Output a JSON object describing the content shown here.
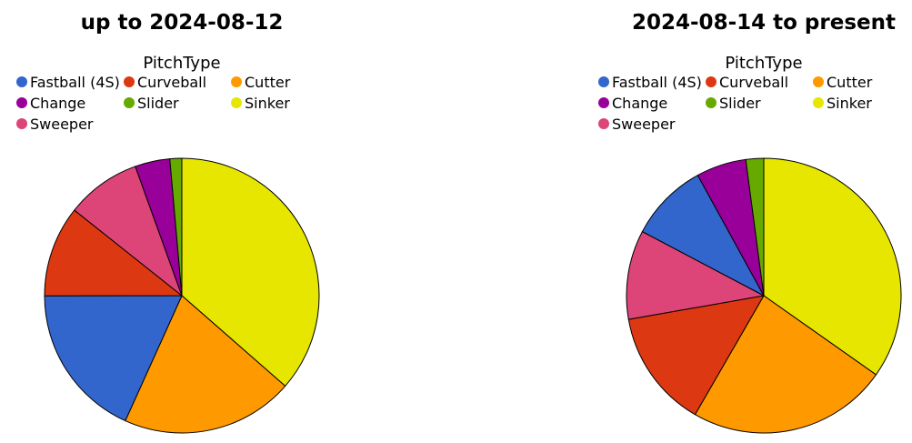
{
  "chart_data": [
    {
      "type": "pie",
      "title": "up to 2024-08-12",
      "legend_title": "PitchType",
      "legend_placement": "top",
      "start": "top",
      "direction": "clockwise",
      "slices": [
        {
          "label": "Sinker",
          "value": 36.4,
          "color": "#e6e600"
        },
        {
          "label": "Cutter",
          "value": 20.3,
          "color": "#ff9900"
        },
        {
          "label": "Fastball (4S)",
          "value": 18.2,
          "color": "#3366cc"
        },
        {
          "label": "Curveball",
          "value": 10.7,
          "color": "#dc3912"
        },
        {
          "label": "Sweeper",
          "value": 8.8,
          "color": "#dd4477"
        },
        {
          "label": "Change",
          "value": 4.1,
          "color": "#990099"
        },
        {
          "label": "Slider",
          "value": 1.4,
          "color": "#66aa00"
        }
      ]
    },
    {
      "type": "pie",
      "title": "2024-08-14 to present",
      "legend_title": "PitchType",
      "legend_placement": "top",
      "start": "top",
      "direction": "clockwise",
      "slices": [
        {
          "label": "Sinker",
          "value": 34.8,
          "color": "#e6e600"
        },
        {
          "label": "Cutter",
          "value": 23.6,
          "color": "#ff9900"
        },
        {
          "label": "Curveball",
          "value": 13.9,
          "color": "#dc3912"
        },
        {
          "label": "Sweeper",
          "value": 10.5,
          "color": "#dd4477"
        },
        {
          "label": "Fastball (4S)",
          "value": 9.3,
          "color": "#3366cc"
        },
        {
          "label": "Change",
          "value": 5.9,
          "color": "#990099"
        },
        {
          "label": "Slider",
          "value": 2.1,
          "color": "#66aa00"
        }
      ]
    }
  ],
  "legend_items": [
    {
      "label": "Fastball (4S)",
      "color": "#3366cc"
    },
    {
      "label": "Curveball",
      "color": "#dc3912"
    },
    {
      "label": "Cutter",
      "color": "#ff9900"
    },
    {
      "label": "Change",
      "color": "#990099"
    },
    {
      "label": "Slider",
      "color": "#66aa00"
    },
    {
      "label": "Sinker",
      "color": "#e6e600"
    },
    {
      "label": "Sweeper",
      "color": "#dd4477"
    }
  ]
}
